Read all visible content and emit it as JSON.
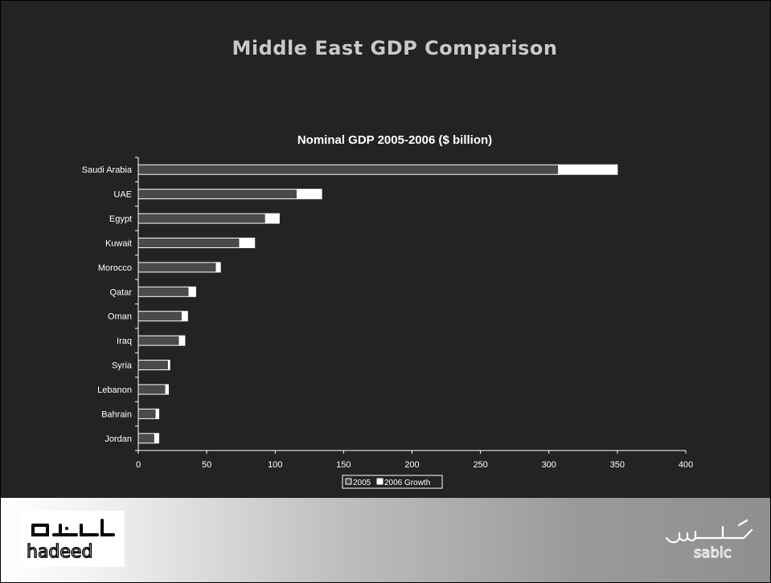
{
  "slide": {
    "title": "Middle East GDP Comparison"
  },
  "colors": {
    "slide_background": "#232323",
    "bar_2005": "#4a4a4a",
    "bar_2006_growth": "#ffffff",
    "axis": "#ffffff",
    "text": "#ffffff"
  },
  "chart_data": {
    "type": "bar",
    "orientation": "horizontal",
    "stacked": true,
    "title": "Nominal GDP 2005-2006 ($ billion)",
    "categories": [
      "Saudi Arabia",
      "UAE",
      "Egypt",
      "Kuwait",
      "Morocco",
      "Qatar",
      "Oman",
      "Iraq",
      "Syria",
      "Lebanon",
      "Bahrain",
      "Jordan"
    ],
    "series": [
      {
        "name": "2005",
        "color": "#4a4a4a",
        "values": [
          307,
          116,
          93,
          74,
          57,
          37,
          32,
          30,
          22,
          20,
          13,
          12
        ]
      },
      {
        "name": "2006 Growth",
        "color": "#ffffff",
        "values": [
          43,
          18,
          10,
          11,
          3,
          5,
          4,
          4,
          1,
          2,
          2,
          3
        ]
      }
    ],
    "xlim": [
      0,
      400
    ],
    "xticks": [
      0,
      50,
      100,
      150,
      200,
      250,
      300,
      350,
      400
    ],
    "xlabel": "",
    "ylabel": "",
    "grid": false,
    "legend_position": "bottom"
  },
  "footer": {
    "left_logo": {
      "arabic": "حديــد",
      "latin": "hadeed"
    },
    "right_logo": {
      "arabic": "سـابـك",
      "latin": "sabic"
    }
  }
}
